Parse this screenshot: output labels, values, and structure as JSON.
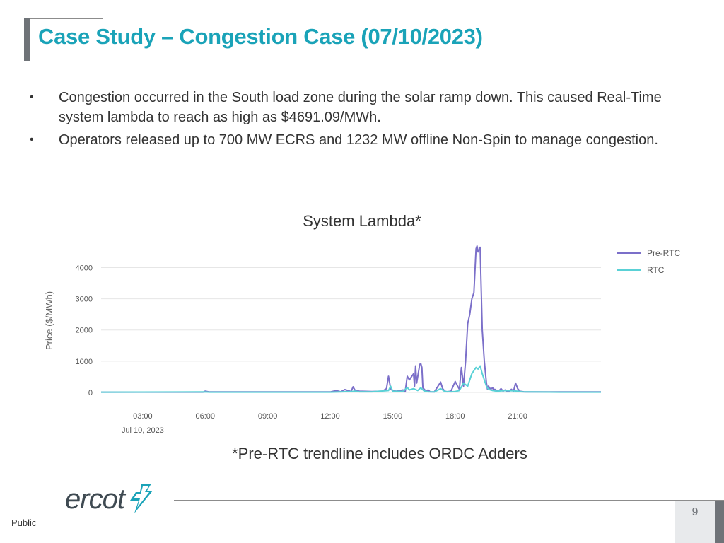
{
  "slide": {
    "title": "Case Study – Congestion Case (07/10/2023)",
    "bullets": [
      "Congestion occurred in the South load zone during the solar ramp down. This caused Real-Time system lambda to reach as high as $4691.09/MWh.",
      "Operators released up to 700 MW ECRS and 1232 MW offline Non-Spin to manage congestion."
    ],
    "bullet_marker": "•",
    "chart_caption": "System Lambda*",
    "footnote": "*Pre-RTC trendline includes ORDC Adders",
    "logo_text": "ercot",
    "page_number": "9",
    "classification": "Public"
  },
  "colors": {
    "title": "#1aa3b8",
    "pre_rtc": "#7b6fc9",
    "rtc": "#5ad1d6",
    "grid": "#e6e6e6",
    "logo_mark": "#1aa3b8"
  },
  "chart_data": {
    "type": "line",
    "title": "System Lambda*",
    "xlabel": "",
    "ylabel": "Price ($/MWh)",
    "ylim": [
      0,
      4600
    ],
    "yticks": [
      0,
      1000,
      2000,
      3000,
      4000
    ],
    "xlim": [
      1.0,
      25.0
    ],
    "xticks": [
      {
        "value": 3,
        "label": "03:00"
      },
      {
        "value": 6,
        "label": "06:00"
      },
      {
        "value": 9,
        "label": "09:00"
      },
      {
        "value": 12,
        "label": "12:00"
      },
      {
        "value": 15,
        "label": "15:00"
      },
      {
        "value": 18,
        "label": "18:00"
      },
      {
        "value": 21,
        "label": "21:00"
      }
    ],
    "date_label": "Jul 10, 2023",
    "legend_position": "top-right",
    "series": [
      {
        "name": "Pre-RTC",
        "color": "#7b6fc9",
        "x": [
          1.0,
          5.9,
          6.0,
          6.2,
          9.0,
          12.0,
          12.3,
          12.5,
          12.7,
          13.0,
          13.1,
          13.2,
          13.4,
          14.0,
          14.5,
          14.7,
          14.8,
          14.9,
          15.0,
          15.2,
          15.5,
          15.6,
          15.7,
          15.8,
          16.0,
          16.05,
          16.1,
          16.15,
          16.3,
          16.35,
          16.4,
          16.45,
          16.6,
          16.7,
          16.8,
          17.0,
          17.3,
          17.4,
          17.5,
          17.6,
          17.8,
          18.0,
          18.2,
          18.3,
          18.4,
          18.5,
          18.6,
          18.7,
          18.8,
          18.9,
          19.0,
          19.05,
          19.1,
          19.2,
          19.3,
          19.4,
          19.5,
          19.55,
          19.6,
          19.7,
          19.8,
          19.85,
          19.9,
          20.0,
          20.1,
          20.2,
          20.3,
          20.4,
          20.5,
          20.6,
          20.7,
          20.8,
          20.9,
          21.0,
          21.1,
          21.2,
          21.3,
          21.4,
          21.6,
          21.8,
          22.0,
          23.0,
          24.0,
          25.0
        ],
        "values": [
          10,
          10,
          40,
          15,
          15,
          15,
          60,
          20,
          90,
          30,
          180,
          60,
          40,
          30,
          40,
          120,
          520,
          120,
          50,
          40,
          80,
          20,
          520,
          400,
          600,
          200,
          850,
          300,
          900,
          920,
          800,
          150,
          40,
          80,
          20,
          15,
          330,
          120,
          40,
          20,
          40,
          350,
          100,
          800,
          200,
          1000,
          2200,
          2500,
          3000,
          3200,
          4600,
          4691,
          4500,
          4650,
          2000,
          1000,
          300,
          100,
          200,
          100,
          150,
          60,
          100,
          60,
          50,
          120,
          40,
          80,
          30,
          40,
          100,
          40,
          300,
          120,
          40,
          30,
          20,
          15,
          15,
          15,
          15,
          15,
          15,
          15
        ]
      },
      {
        "name": "RTC",
        "color": "#5ad1d6",
        "x": [
          1.0,
          6.0,
          6.2,
          12.0,
          13.0,
          13.2,
          13.4,
          14.0,
          14.8,
          14.9,
          15.0,
          15.5,
          15.7,
          15.8,
          16.0,
          16.2,
          16.35,
          16.5,
          16.7,
          17.0,
          17.3,
          17.5,
          17.8,
          18.0,
          18.2,
          18.4,
          18.6,
          18.8,
          19.0,
          19.1,
          19.2,
          19.3,
          19.4,
          19.5,
          19.6,
          19.7,
          19.8,
          20.0,
          20.4,
          20.8,
          21.0,
          21.2,
          21.5,
          23.0,
          25.0
        ],
        "values": [
          10,
          15,
          10,
          10,
          30,
          40,
          20,
          20,
          60,
          200,
          40,
          30,
          160,
          80,
          120,
          60,
          150,
          50,
          20,
          15,
          120,
          30,
          20,
          30,
          60,
          300,
          200,
          600,
          800,
          750,
          850,
          600,
          400,
          200,
          100,
          80,
          60,
          40,
          60,
          50,
          40,
          20,
          15,
          10,
          10
        ]
      }
    ]
  }
}
